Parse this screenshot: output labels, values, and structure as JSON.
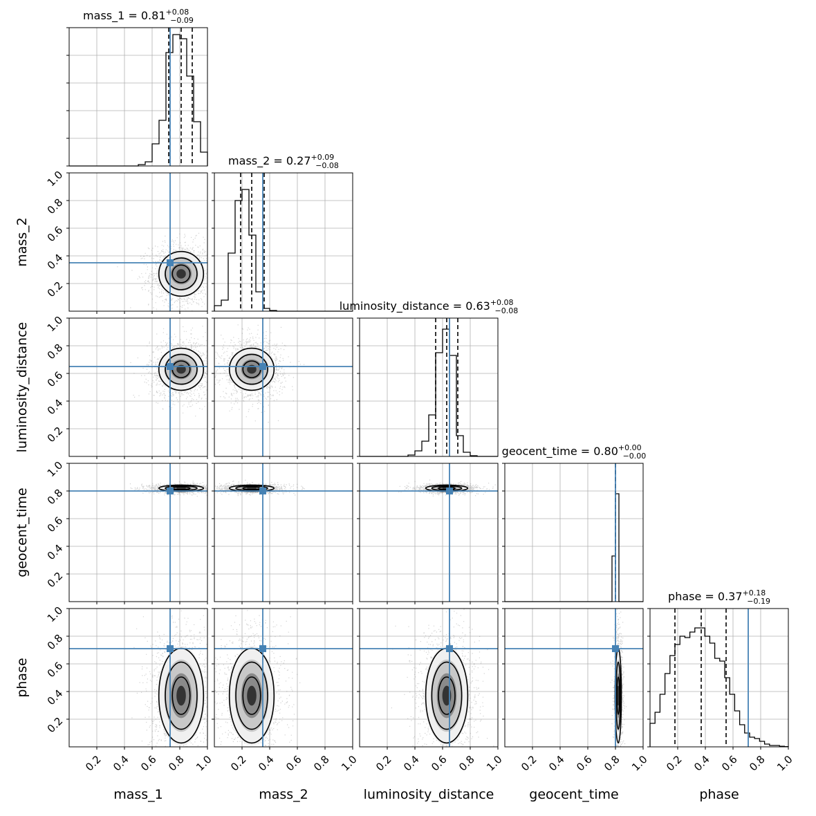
{
  "chart_data": {
    "type": "corner",
    "parameters": [
      "mass_1",
      "mass_2",
      "luminosity_distance",
      "geocent_time",
      "phase"
    ],
    "titles": [
      {
        "param": "mass_1",
        "prefix": "mass_1 = ",
        "median": "0.81",
        "plus": "+0.08",
        "minus": "−0.09"
      },
      {
        "param": "mass_2",
        "prefix": "mass_2 = ",
        "median": "0.27",
        "plus": "+0.09",
        "minus": "−0.08"
      },
      {
        "param": "luminosity_distance",
        "prefix": "luminosity_distance = ",
        "median": "0.63",
        "plus": "+0.08",
        "minus": "−0.08"
      },
      {
        "param": "geocent_time",
        "prefix": "geocent_time = ",
        "median": "0.80",
        "plus": "+0.00",
        "minus": "−0.00"
      },
      {
        "param": "phase",
        "prefix": "phase = ",
        "median": "0.37",
        "plus": "+0.18",
        "minus": "−0.19"
      }
    ],
    "axis_range": [
      0,
      1
    ],
    "tick_labels": [
      "0.2",
      "0.4",
      "0.6",
      "0.8",
      "1.0"
    ],
    "truths": [
      0.73,
      0.35,
      0.65,
      0.8,
      0.71
    ],
    "quantiles": [
      [
        0.72,
        0.81,
        0.89
      ],
      [
        0.19,
        0.27,
        0.36
      ],
      [
        0.55,
        0.63,
        0.71
      ],
      [
        0.8,
        0.8,
        0.8
      ],
      [
        0.18,
        0.37,
        0.55
      ]
    ],
    "means": [
      0.81,
      0.27,
      0.63,
      0.82,
      0.37
    ],
    "sigmas": [
      0.085,
      0.085,
      0.08,
      0.012,
      0.18
    ],
    "histograms": [
      {
        "edges_start": 0.5,
        "bin_width": 0.05,
        "counts": [
          0.01,
          0.03,
          0.16,
          0.33,
          0.82,
          0.95,
          0.92,
          0.65,
          0.32,
          0.1
        ]
      },
      {
        "edges_start": 0.0,
        "bin_width": 0.05,
        "counts": [
          0.04,
          0.08,
          0.42,
          0.8,
          0.88,
          0.55,
          0.14,
          0.02,
          0.005
        ]
      },
      {
        "edges_start": 0.35,
        "bin_width": 0.05,
        "counts": [
          0.01,
          0.04,
          0.11,
          0.3,
          0.75,
          0.92,
          0.73,
          0.15,
          0.03,
          0.005
        ]
      },
      {
        "edges_start": 0.75,
        "bin_width": 0.025,
        "counts": [
          0,
          0.33,
          0.78,
          0
        ]
      },
      {
        "edges_start": 0.0,
        "bin_width": 0.036,
        "counts": [
          0.17,
          0.25,
          0.38,
          0.53,
          0.66,
          0.74,
          0.8,
          0.79,
          0.83,
          0.86,
          0.86,
          0.8,
          0.75,
          0.64,
          0.62,
          0.5,
          0.38,
          0.26,
          0.16,
          0.1,
          0.07,
          0.06,
          0.04,
          0.02,
          0.01,
          0.01,
          0.004,
          0.002
        ]
      }
    ],
    "grid": true,
    "truth_color": "#4682b4"
  }
}
